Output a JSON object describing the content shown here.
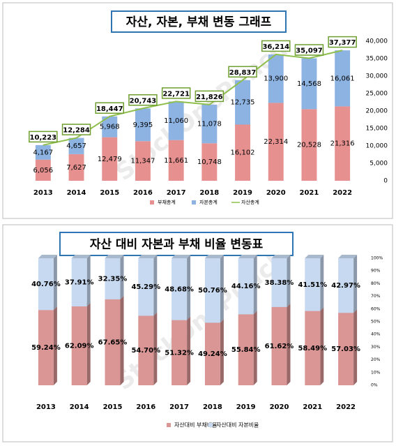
{
  "chart_data": [
    {
      "type": "bar",
      "stacked": true,
      "title": "자산, 자본, 부채 변동 그래프",
      "watermark": "StockOnePunch",
      "legend": "bottom",
      "categories": [
        "2013",
        "2014",
        "2015",
        "2016",
        "2017",
        "2018",
        "2019",
        "2020",
        "2021",
        "2022"
      ],
      "series": [
        {
          "name": "부채총계",
          "color": "#e6918f",
          "values": [
            6056,
            7627,
            12479,
            11347,
            11661,
            10748,
            16102,
            22314,
            20528,
            21316
          ],
          "value_labels": [
            "6,056",
            "7,627",
            "12,479",
            "11,347",
            "11,661",
            "10,748",
            "16,102",
            "22,314",
            "20,528",
            "21,316"
          ]
        },
        {
          "name": "자본총계",
          "color": "#8db3e2",
          "values": [
            4167,
            4657,
            5968,
            9395,
            11060,
            11078,
            12735,
            13900,
            14568,
            16061
          ],
          "value_labels": [
            "4,167",
            "4,657",
            "5,968",
            "9,395",
            "11,060",
            "11,078",
            "12,735",
            "13,900",
            "14,568",
            "16,061"
          ]
        },
        {
          "name": "자산총계",
          "color": "#8fbf4d",
          "type": "line",
          "values": [
            10223,
            12284,
            18447,
            20743,
            22721,
            21826,
            28837,
            36214,
            35097,
            37377
          ],
          "value_labels": [
            "10,223",
            "12,284",
            "18,447",
            "20,743",
            "22,721",
            "21,826",
            "28,837",
            "36,214",
            "35,097",
            "37,377"
          ]
        }
      ],
      "ylim": [
        0,
        40000
      ],
      "yticks": [
        0,
        {
          "value": 5000,
          "label": "5,000"
        },
        {
          "value": 10000,
          "label": "10,000"
        },
        {
          "value": 15000,
          "label": "15,000"
        },
        {
          "value": 20000,
          "label": "20,000"
        },
        {
          "value": 25000,
          "label": "25,000"
        },
        {
          "value": 30000,
          "label": "30,000"
        },
        {
          "value": 35000,
          "label": "35,000"
        },
        {
          "value": 40000,
          "label": "40,000"
        }
      ],
      "grid": false
    },
    {
      "type": "bar",
      "stacked": true,
      "three_d": true,
      "title": "자산 대비 자본과 부채 비율 변동표",
      "watermark": "StockOnePunch",
      "legend": "bottom",
      "categories": [
        "2013",
        "2014",
        "2015",
        "2016",
        "2017",
        "2018",
        "2019",
        "2020",
        "2021",
        "2022"
      ],
      "series": [
        {
          "name": "자산대비 부채비율",
          "color": "#d99694",
          "values": [
            59.24,
            62.09,
            67.65,
            54.7,
            51.32,
            49.24,
            55.84,
            61.62,
            58.49,
            57.03
          ],
          "value_labels": [
            "59.24%",
            "62.09%",
            "67.65%",
            "54.70%",
            "51.32%",
            "49.24%",
            "55.84%",
            "61.62%",
            "58.49%",
            "57.03%"
          ]
        },
        {
          "name": "자산대비 자본비율",
          "color": "#c6d9f1",
          "values": [
            40.76,
            37.91,
            32.35,
            45.29,
            48.68,
            50.76,
            44.16,
            38.38,
            41.51,
            42.97
          ],
          "value_labels": [
            "40.76%",
            "37.91%",
            "32.35%",
            "45.29%",
            "48.68%",
            "50.76%",
            "44.16%",
            "38.38%",
            "41.51%",
            "42.97%"
          ]
        }
      ],
      "ylim": [
        0,
        100
      ],
      "yticks": [
        {
          "value": 0,
          "label": "0%"
        },
        {
          "value": 10,
          "label": "10%"
        },
        {
          "value": 20,
          "label": "20%"
        },
        {
          "value": 30,
          "label": "30%"
        },
        {
          "value": 40,
          "label": "40%"
        },
        {
          "value": 50,
          "label": "50%"
        },
        {
          "value": 60,
          "label": "60%"
        },
        {
          "value": 70,
          "label": "70%"
        },
        {
          "value": 80,
          "label": "80%"
        },
        {
          "value": 90,
          "label": "90%"
        },
        {
          "value": 100,
          "label": "100%"
        }
      ],
      "grid": false
    }
  ]
}
